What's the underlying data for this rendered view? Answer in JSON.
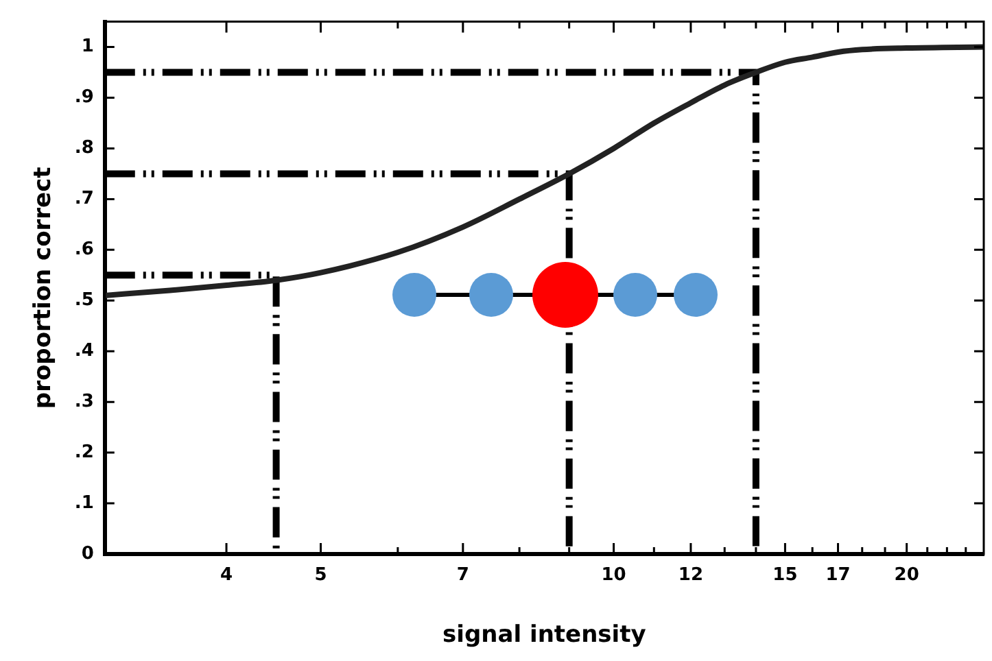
{
  "chart_data": {
    "type": "line",
    "xlabel": "signal intensity",
    "ylabel": "proportion correct",
    "log": "x",
    "grid": false,
    "legend": false,
    "marker": "none",
    "xlim": [
      3,
      24
    ],
    "ylim": [
      0,
      1.05
    ],
    "xticks": [
      4,
      5,
      {
        "value": 6,
        "label": null
      },
      7,
      {
        "value": 8,
        "label": null
      },
      {
        "value": 9,
        "label": null
      },
      10,
      {
        "value": 11,
        "label": null
      },
      12,
      {
        "value": 13,
        "label": null
      },
      {
        "value": 14,
        "label": null
      },
      15,
      {
        "value": 16,
        "label": null
      },
      17,
      {
        "value": 18,
        "label": null
      },
      {
        "value": 19,
        "label": null
      },
      20,
      {
        "value": 21,
        "label": null
      },
      {
        "value": 22,
        "label": null
      },
      {
        "value": 23,
        "label": null
      }
    ],
    "yticks": [
      0,
      {
        "value": 0.1,
        "label": ".1"
      },
      {
        "value": 0.2,
        "label": ".2"
      },
      {
        "value": 0.3,
        "label": ".3"
      },
      {
        "value": 0.4,
        "label": ".4"
      },
      {
        "value": 0.5,
        "label": ".5"
      },
      {
        "value": 0.6,
        "label": ".6"
      },
      {
        "value": 0.7,
        "label": ".7"
      },
      {
        "value": 0.8,
        "label": ".8"
      },
      {
        "value": 0.9,
        "label": ".9"
      },
      1
    ],
    "series": [
      {
        "color": "#222222",
        "line_style": "solid",
        "x": [
          3,
          3.5,
          4,
          4.5,
          5,
          6,
          7,
          8,
          9,
          10,
          11,
          12,
          13,
          14,
          15,
          16,
          17,
          18,
          20,
          24
        ],
        "values": [
          0.51,
          0.52,
          0.53,
          0.54,
          0.555,
          0.595,
          0.645,
          0.7,
          0.75,
          0.8,
          0.85,
          0.89,
          0.925,
          0.95,
          0.97,
          0.98,
          0.99,
          0.995,
          0.998,
          1.0
        ]
      },
      {
        "color": "#000000",
        "line_style": "dashed",
        "x": [
          3,
          4.5,
          4.5
        ],
        "values": [
          0.55,
          0.55,
          0
        ]
      },
      {
        "color": "#000000",
        "line_style": "dashed",
        "x": [
          3,
          9,
          9
        ],
        "values": [
          0.75,
          0.75,
          0
        ]
      },
      {
        "color": "#000000",
        "line_style": "dashed",
        "x": [
          3,
          14,
          14
        ],
        "values": [
          0.95,
          0.95,
          0
        ]
      }
    ]
  }
}
